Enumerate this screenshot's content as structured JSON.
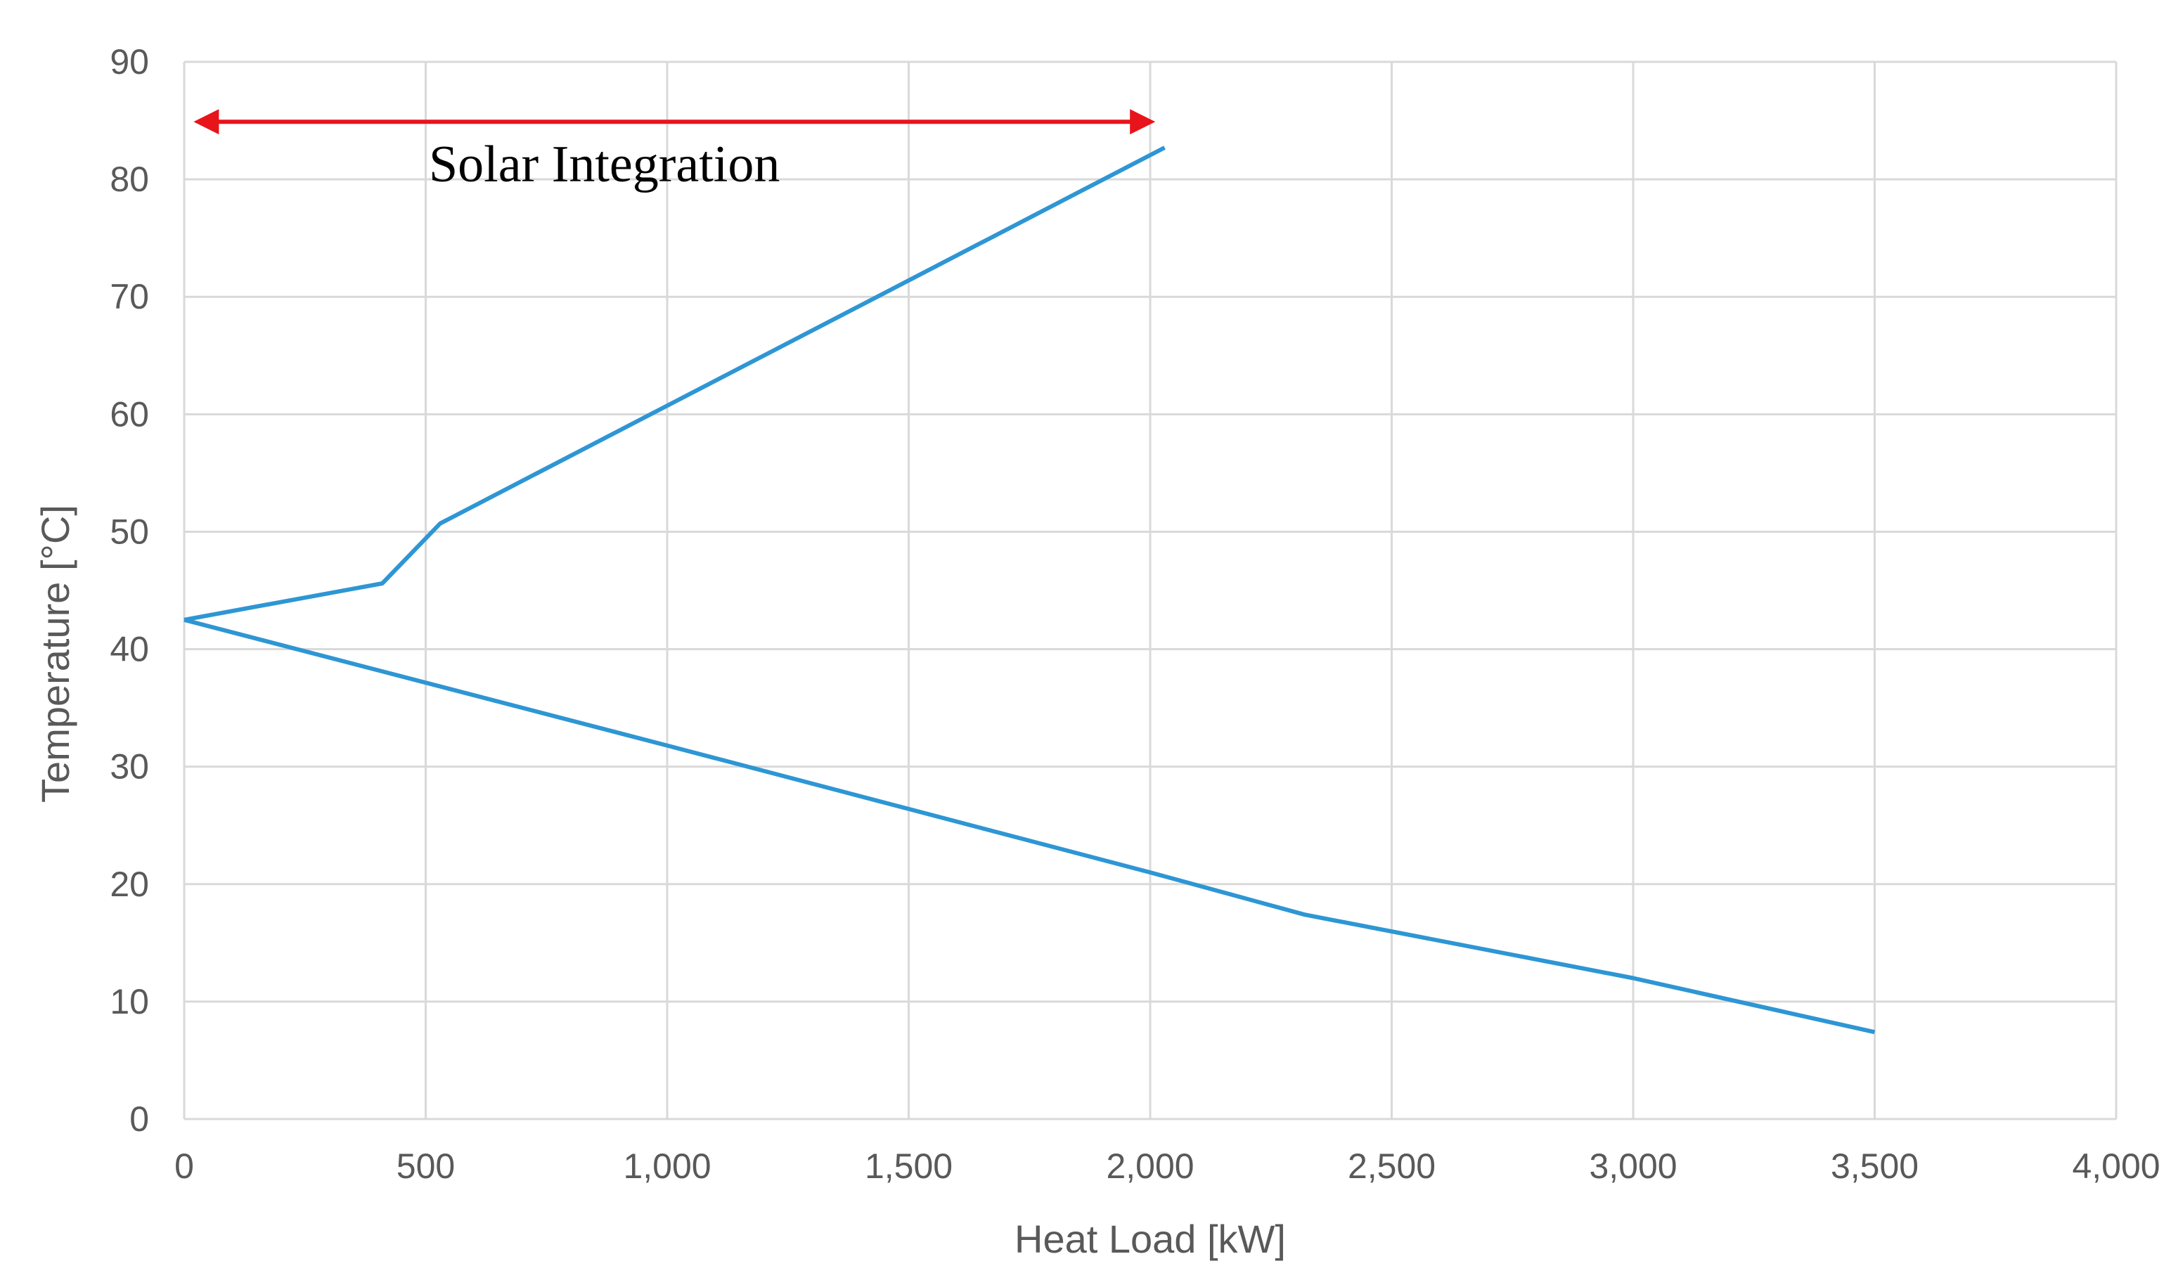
{
  "chart_data": {
    "type": "line",
    "xlabel": "Heat Load [kW]",
    "ylabel": "Temperature [°C]",
    "xlim": [
      0,
      4000
    ],
    "ylim": [
      0,
      90
    ],
    "x_ticks": [
      0,
      500,
      1000,
      1500,
      2000,
      2500,
      3000,
      3500,
      4000
    ],
    "x_tick_labels": [
      "0",
      "500",
      "1,000",
      "1,500",
      "2,000",
      "2,500",
      "3,000",
      "3,500",
      "4,000"
    ],
    "y_ticks": [
      0,
      10,
      20,
      30,
      40,
      50,
      60,
      70,
      80,
      90
    ],
    "y_tick_labels": [
      "0",
      "10",
      "20",
      "30",
      "40",
      "50",
      "60",
      "70",
      "80",
      "90"
    ],
    "grid": true,
    "legend": false,
    "colors": {
      "line": "#2e96d4",
      "annotation_arrow": "#e8141c",
      "grid": "#d9d9d9"
    },
    "series": [
      {
        "points": [
          [
            0,
            42.5
          ],
          [
            410,
            45.6
          ],
          [
            530,
            50.7
          ],
          [
            2030,
            82.7
          ]
        ]
      },
      {
        "points": [
          [
            0,
            42.5
          ],
          [
            1000,
            31.8
          ],
          [
            2000,
            21.0
          ],
          [
            2320,
            17.4
          ],
          [
            3000,
            12.0
          ],
          [
            3500,
            7.4
          ]
        ]
      }
    ],
    "annotation": {
      "text": "Solar Integration",
      "x_start": 30,
      "x_end": 2000,
      "y": 84.9
    }
  }
}
